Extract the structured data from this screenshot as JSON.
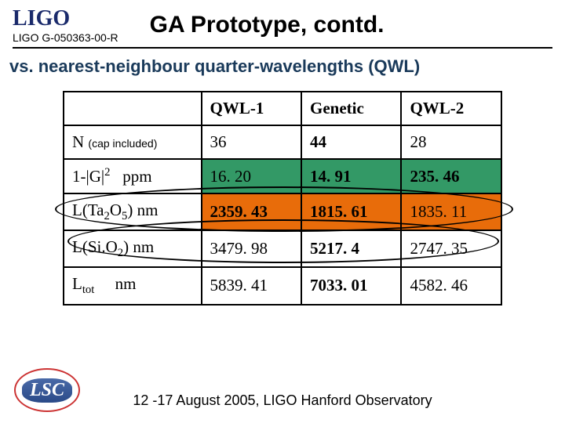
{
  "header": {
    "logo_text": "LIGO",
    "doc_id": "LIGO G-050363-00-R",
    "title": "GA Prototype, contd."
  },
  "subtitle": "vs. nearest-neighbour quarter-wavelengths (QWL)",
  "table": {
    "columns": [
      "",
      "QWL-1",
      "Genetic",
      "QWL-2"
    ],
    "row_headers": {
      "n": {
        "main": "N",
        "note": "(cap included)"
      },
      "g": {
        "prefix": "1-|",
        "mid": "G",
        "suffix": "|",
        "sup": "2",
        "unit": "ppm"
      },
      "ta": {
        "prefix": "L(Ta",
        "sub1": "2",
        "mid": "O",
        "sub2": "5",
        "suffix": ") nm"
      },
      "si": {
        "prefix": "L(Si.O",
        "sub": "2",
        "suffix": ")  nm"
      },
      "lt": {
        "prefix": "L",
        "sub": "tot",
        "unit": "nm"
      }
    },
    "rows": {
      "n": [
        "36",
        "44",
        "28"
      ],
      "g": [
        "16. 20",
        "14. 91",
        "235. 46"
      ],
      "ta": [
        "2359. 43",
        "1815. 61",
        "1835. 11"
      ],
      "si": [
        "3479. 98",
        "5217. 4",
        "2747. 35"
      ],
      "lt": [
        "5839. 41",
        "7033. 01",
        "4582. 46"
      ]
    },
    "highlights": {
      "g_row_cols": [
        0,
        1,
        2
      ],
      "g_row_color": "#339966",
      "ta_row_cols": [
        0,
        1,
        2
      ],
      "ta_row_color": "#e86c0a"
    },
    "cell_font": {
      "family": "Georgia",
      "size_pt": 16
    },
    "border_color": "#000000",
    "background": "#ffffff"
  },
  "footer": {
    "text": "12 -17 August 2005, LIGO Hanford Observatory",
    "lsc_label": "LSC"
  },
  "colors": {
    "title": "#000000",
    "subtitle": "#1a3a5a",
    "logo": "#1a2a6b",
    "lsc_border": "#cc3333",
    "lsc_fill": "#3a5a98"
  }
}
